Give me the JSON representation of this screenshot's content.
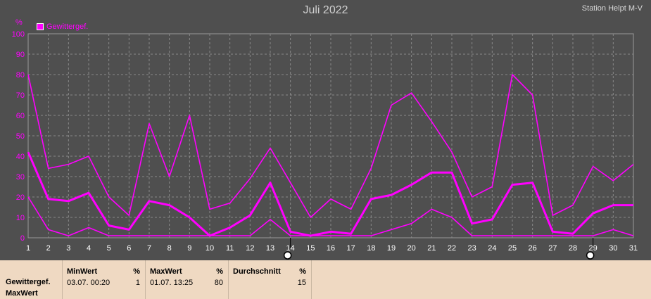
{
  "header": {
    "title": "Juli 2022",
    "station": "Station Helpt M-V",
    "unit": "%",
    "legend_label": "Gewittergef."
  },
  "colors": {
    "series": "#ff00ff",
    "background": "#4f4f4f",
    "grid": "#8a8a8a",
    "axis_text": "#ff00ff",
    "x_tick_text": "#ffffff",
    "panel": "#efd9c2"
  },
  "chart_data": {
    "type": "line",
    "title": "Juli 2022",
    "ylabel": "%",
    "ylim": [
      0,
      100
    ],
    "yticks": [
      0,
      10,
      20,
      30,
      40,
      50,
      60,
      70,
      80,
      90,
      100
    ],
    "x": [
      1,
      2,
      3,
      4,
      5,
      6,
      7,
      8,
      9,
      10,
      11,
      12,
      13,
      14,
      15,
      16,
      17,
      18,
      19,
      20,
      21,
      22,
      23,
      24,
      25,
      26,
      27,
      28,
      29,
      30,
      31
    ],
    "grid": true,
    "legend": "top-left",
    "series": [
      {
        "name": "Gewittergef.",
        "role": "max",
        "values": [
          80,
          34,
          36,
          40,
          20,
          11,
          56,
          30,
          60,
          14,
          17,
          29,
          44,
          27,
          10,
          19,
          14,
          34,
          65,
          71,
          57,
          42,
          20,
          25,
          80,
          70,
          11,
          16,
          35,
          28,
          36
        ]
      },
      {
        "name": "Gewittergef.",
        "role": "mean",
        "values": [
          42,
          19,
          18,
          22,
          6,
          4,
          18,
          16,
          10,
          1,
          5,
          11,
          27,
          3,
          1,
          3,
          2,
          19,
          21,
          26,
          32,
          32,
          7,
          9,
          26,
          27,
          3,
          2,
          12,
          16,
          16
        ]
      },
      {
        "name": "Gewittergef.",
        "role": "min",
        "values": [
          20,
          4,
          1,
          5,
          1,
          1,
          1,
          1,
          1,
          1,
          1,
          1,
          9,
          1,
          1,
          1,
          1,
          1,
          4,
          7,
          14,
          10,
          1,
          1,
          1,
          1,
          1,
          1,
          1,
          4,
          1
        ]
      }
    ],
    "markers_on_x": [
      14,
      29
    ]
  },
  "panel": {
    "row_label_1": "Gewittergef.",
    "row_label_2": "MaxWert",
    "min": {
      "header": "MinWert",
      "unit": "%",
      "date": "03.07.  00:20",
      "value": "1"
    },
    "max": {
      "header": "MaxWert",
      "unit": "%",
      "date": "01.07.  13:25",
      "value": "80"
    },
    "avg": {
      "header": "Durchschnitt",
      "unit": "%",
      "value": "15"
    }
  }
}
